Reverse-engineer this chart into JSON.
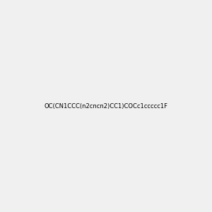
{
  "smiles": "OC(CN1CCC(n2cncn2)CC1)COCc1ccccc1F",
  "title": "",
  "background_color": "#f0f0f0",
  "figsize": [
    3.0,
    3.0
  ],
  "dpi": 100
}
